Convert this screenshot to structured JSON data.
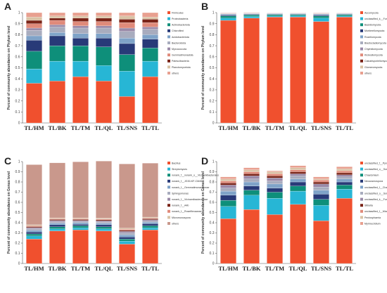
{
  "chart_data": [
    {
      "panel": "A",
      "type": "bar",
      "stacked": true,
      "ylabel": "Percent of community abundance on Phylum level",
      "ylim": [
        0,
        1
      ],
      "yticks": [
        "0",
        "0.1",
        "0.2",
        "0.3",
        "0.4",
        "0.5",
        "0.6",
        "0.7",
        "0.8",
        "0.9",
        "1"
      ],
      "categories": [
        "TL/HM",
        "TL/BK",
        "TL/TM",
        "TL/QL",
        "TL/SNS",
        "TL/TL"
      ],
      "legend_position": "right",
      "series": [
        {
          "name": "Firmicutes",
          "color": "#f0502e",
          "values": [
            0.36,
            0.38,
            0.42,
            0.38,
            0.24,
            0.42
          ]
        },
        {
          "name": "Proteobacteria",
          "color": "#27b6d5",
          "values": [
            0.13,
            0.18,
            0.14,
            0.14,
            0.23,
            0.14
          ]
        },
        {
          "name": "Actinobacteriota",
          "color": "#0e8f7a",
          "values": [
            0.16,
            0.14,
            0.14,
            0.17,
            0.15,
            0.12
          ]
        },
        {
          "name": "Chloroflexi",
          "color": "#283a78",
          "values": [
            0.1,
            0.09,
            0.07,
            0.08,
            0.1,
            0.08
          ]
        },
        {
          "name": "Acidobacteriota",
          "color": "#7fa3c8",
          "values": [
            0.04,
            0.03,
            0.04,
            0.04,
            0.05,
            0.04
          ]
        },
        {
          "name": "Bacteroidota",
          "color": "#a8acbe",
          "values": [
            0.05,
            0.05,
            0.05,
            0.05,
            0.06,
            0.05
          ]
        },
        {
          "name": "Myxococcota",
          "color": "#9a8aa8",
          "values": [
            0.02,
            0.02,
            0.02,
            0.02,
            0.03,
            0.02
          ]
        },
        {
          "name": "Gemmatimonadota",
          "color": "#e08a7a",
          "values": [
            0.04,
            0.04,
            0.04,
            0.04,
            0.05,
            0.04
          ]
        },
        {
          "name": "Patescibacteria",
          "color": "#7a2418",
          "values": [
            0.03,
            0.02,
            0.03,
            0.03,
            0.03,
            0.03
          ]
        },
        {
          "name": "Planctomycetota",
          "color": "#d9c3a6",
          "values": [
            0.03,
            0.02,
            0.02,
            0.02,
            0.03,
            0.02
          ]
        },
        {
          "name": "others",
          "color": "#e8a090",
          "values": [
            0.04,
            0.03,
            0.03,
            0.03,
            0.03,
            0.04
          ]
        }
      ]
    },
    {
      "panel": "B",
      "type": "bar",
      "stacked": true,
      "ylabel": "Percent of community abundance on Phylum level",
      "ylim": [
        0,
        1
      ],
      "yticks": [
        "0",
        "0.1",
        "0.2",
        "0.3",
        "0.4",
        "0.5",
        "0.6",
        "0.7",
        "0.8",
        "0.9",
        "1"
      ],
      "categories": [
        "TL/HM",
        "TL/BK",
        "TL/TM",
        "TL/QL",
        "TL/SNS",
        "TL/TL"
      ],
      "legend_position": "right",
      "series": [
        {
          "name": "Ascomycota",
          "color": "#f0502e",
          "values": [
            0.93,
            0.95,
            0.96,
            0.96,
            0.92,
            0.96
          ]
        },
        {
          "name": "unclassified_k__Fungi",
          "color": "#27b6d5",
          "values": [
            0.02,
            0.015,
            0.01,
            0.012,
            0.03,
            0.01
          ]
        },
        {
          "name": "Basidiomycota",
          "color": "#0e8f7a",
          "values": [
            0.02,
            0.015,
            0.012,
            0.01,
            0.02,
            0.012
          ]
        },
        {
          "name": "Mortierellomycota",
          "color": "#283a78",
          "values": [
            0.01,
            0.005,
            0.005,
            0.005,
            0.01,
            0.005
          ]
        },
        {
          "name": "Rozellomycota",
          "color": "#7fa3c8",
          "values": [
            0.005,
            0.005,
            0.004,
            0.004,
            0.005,
            0.004
          ]
        },
        {
          "name": "Blastocladiomycota",
          "color": "#a8acbe",
          "values": [
            0.004,
            0.003,
            0.003,
            0.003,
            0.004,
            0.003
          ]
        },
        {
          "name": "Chytridiomycota",
          "color": "#9a8aa8",
          "values": [
            0.003,
            0.003,
            0.002,
            0.002,
            0.003,
            0.002
          ]
        },
        {
          "name": "Kickxellomycota",
          "color": "#e08a7a",
          "values": [
            0.003,
            0.002,
            0.002,
            0.002,
            0.003,
            0.002
          ]
        },
        {
          "name": "Calcarisporiellomycota",
          "color": "#7a2418",
          "values": [
            0.002,
            0.002,
            0.001,
            0.001,
            0.002,
            0.001
          ]
        },
        {
          "name": "Glomeromycota",
          "color": "#d9c3a6",
          "values": [
            0.002,
            0.001,
            0.001,
            0.001,
            0.002,
            0.001
          ]
        },
        {
          "name": "others",
          "color": "#e8a090",
          "values": [
            0.001,
            0.001,
            0.001,
            0.001,
            0.001,
            0.001
          ]
        }
      ]
    },
    {
      "panel": "C",
      "type": "bar",
      "stacked": true,
      "ylabel": "Percent of community abundance on Genus level",
      "ylim": [
        0,
        1
      ],
      "yticks": [
        "0",
        "0.1",
        "0.2",
        "0.3",
        "0.4",
        "0.5",
        "0.6",
        "0.7",
        "0.8",
        "0.9",
        "1"
      ],
      "categories": [
        "TL/HM",
        "TL/BK",
        "TL/TM",
        "TL/QL",
        "TL/SNS",
        "TL/TL"
      ],
      "legend_position": "right",
      "series": [
        {
          "name": "Bacillus",
          "color": "#f0502e",
          "values": [
            0.24,
            0.32,
            0.33,
            0.32,
            0.19,
            0.33
          ]
        },
        {
          "name": "Streptomyces",
          "color": "#27b6d5",
          "values": [
            0.03,
            0.02,
            0.02,
            0.02,
            0.03,
            0.02
          ]
        },
        {
          "name": "norank_f__norank_o__Vicinamibacterales",
          "color": "#0e8f7a",
          "values": [
            0.02,
            0.02,
            0.02,
            0.02,
            0.02,
            0.02
          ]
        },
        {
          "name": "norank_f__JG30-KF-CM45",
          "color": "#283a78",
          "values": [
            0.02,
            0.02,
            0.015,
            0.02,
            0.02,
            0.02
          ]
        },
        {
          "name": "norank_f__Gemmatimonadaceae",
          "color": "#7fa3c8",
          "values": [
            0.015,
            0.015,
            0.015,
            0.015,
            0.02,
            0.015
          ]
        },
        {
          "name": "Sphingomonas",
          "color": "#a8acbe",
          "values": [
            0.015,
            0.015,
            0.012,
            0.012,
            0.02,
            0.012
          ]
        },
        {
          "name": "norank_f__Vicinamibacteraceae",
          "color": "#9a8aa8",
          "values": [
            0.012,
            0.012,
            0.01,
            0.012,
            0.015,
            0.012
          ]
        },
        {
          "name": "norank_f__A4b",
          "color": "#7a2418",
          "values": [
            0.01,
            0.01,
            0.01,
            0.01,
            0.012,
            0.01
          ]
        },
        {
          "name": "norank_f__Roseiflexaceae",
          "color": "#e08a7a",
          "values": [
            0.008,
            0.008,
            0.008,
            0.008,
            0.01,
            0.008
          ]
        },
        {
          "name": "Micromonospora",
          "color": "#d9c3a6",
          "values": [
            0.01,
            0.008,
            0.008,
            0.008,
            0.01,
            0.008
          ]
        },
        {
          "name": "others",
          "color": "#c9988c",
          "values": [
            0.59,
            0.54,
            0.55,
            0.56,
            0.63,
            0.53
          ]
        }
      ]
    },
    {
      "panel": "D",
      "type": "bar",
      "stacked": true,
      "ylabel": "Percent of community abundance on Genus level",
      "ylim": [
        0,
        1
      ],
      "yticks": [
        "0",
        "0.1",
        "0.2",
        "0.3",
        "0.4",
        "0.5",
        "0.6",
        "0.7",
        "0.8",
        "0.9",
        "1"
      ],
      "categories": [
        "TL/HM",
        "TL/BK",
        "TL/TM",
        "TL/QL",
        "TL/SNS",
        "TL/TL"
      ],
      "legend_position": "right",
      "series": [
        {
          "name": "unclassified_f__Pyronemataceae",
          "color": "#f0502e",
          "values": [
            0.44,
            0.53,
            0.48,
            0.58,
            0.42,
            0.64
          ]
        },
        {
          "name": "unclassified_o__Sordariales",
          "color": "#27b6d5",
          "values": [
            0.12,
            0.14,
            0.16,
            0.13,
            0.15,
            0.09
          ]
        },
        {
          "name": "Chaetomium",
          "color": "#0e8f7a",
          "values": [
            0.06,
            0.05,
            0.06,
            0.05,
            0.06,
            0.04
          ]
        },
        {
          "name": "Neocosmospora",
          "color": "#283a78",
          "values": [
            0.05,
            0.04,
            0.04,
            0.04,
            0.05,
            0.03
          ]
        },
        {
          "name": "unclassified_f__Chaetomiaceae",
          "color": "#7fa3c8",
          "values": [
            0.04,
            0.04,
            0.04,
            0.03,
            0.04,
            0.03
          ]
        },
        {
          "name": "unclassified_o__Sordariales",
          "color": "#a8acbe",
          "values": [
            0.03,
            0.03,
            0.03,
            0.03,
            0.03,
            0.02
          ]
        },
        {
          "name": "unclassified_k__Fungi",
          "color": "#9a8aa8",
          "values": [
            0.03,
            0.03,
            0.03,
            0.02,
            0.03,
            0.02
          ]
        },
        {
          "name": "Stibella",
          "color": "#7a2418",
          "values": [
            0.02,
            0.02,
            0.02,
            0.02,
            0.02,
            0.02
          ]
        },
        {
          "name": "unclassified_f__Microascaceae",
          "color": "#e08a7a",
          "values": [
            0.02,
            0.02,
            0.02,
            0.02,
            0.02,
            0.02
          ]
        },
        {
          "name": "Pectosphaeria",
          "color": "#d9c3a6",
          "values": [
            0.02,
            0.02,
            0.02,
            0.02,
            0.01,
            0.02
          ]
        },
        {
          "name": "Myrmecridium",
          "color": "#e8a090",
          "values": [
            0.02,
            0.02,
            0.01,
            0.02,
            0.02,
            0.02
          ]
        }
      ]
    }
  ]
}
